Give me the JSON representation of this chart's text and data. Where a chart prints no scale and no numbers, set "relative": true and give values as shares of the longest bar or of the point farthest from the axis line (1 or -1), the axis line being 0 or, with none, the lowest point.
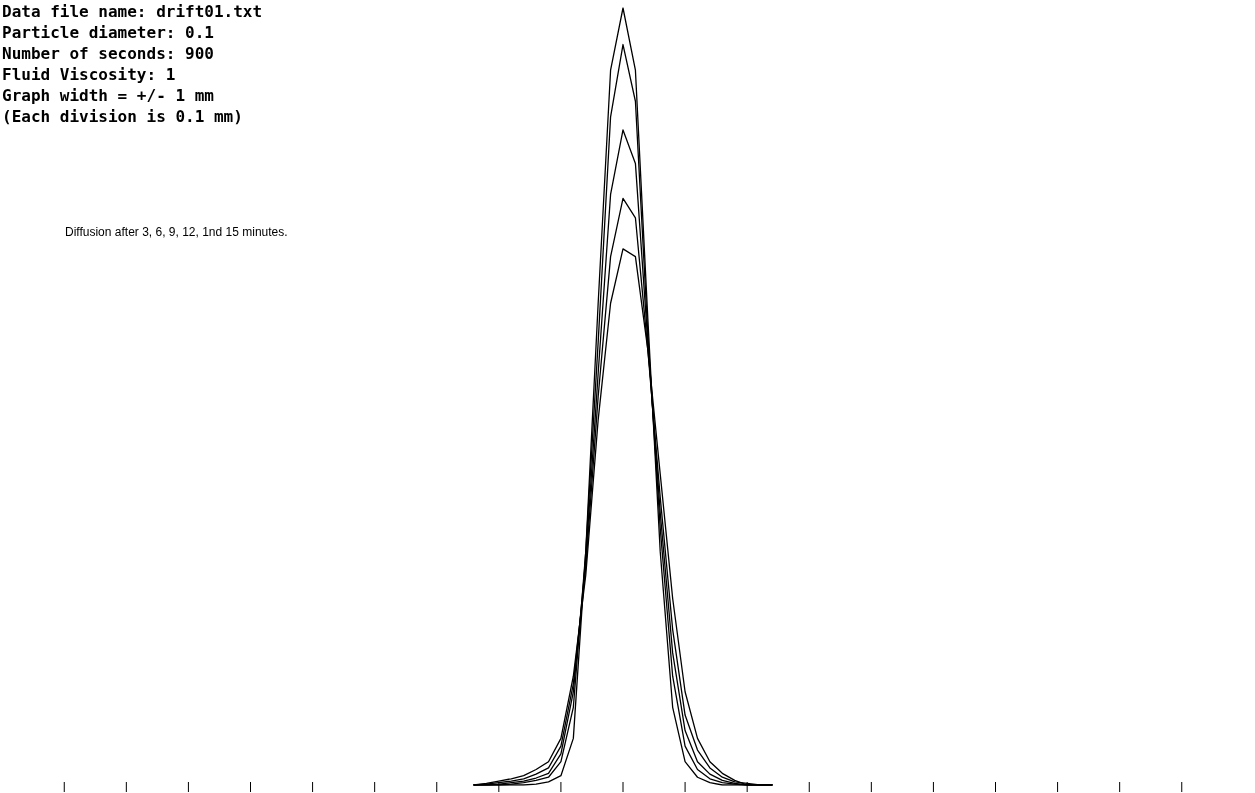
{
  "chart_data": {
    "type": "line",
    "relative": true,
    "grid": false,
    "marker": "none",
    "line_style": "solid",
    "annotations": [
      "Data file name: drift01.txt",
      "Particle diameter: 0.1",
      "Number of seconds: 900",
      "Fluid Viscosity: 1",
      "Graph width = +/- 1 mm",
      "(Each division is 0.1 mm)",
      "Diffusion after 3, 6, 9, 12, 1nd 15 minutes."
    ],
    "categories": [
      null,
      null,
      null,
      null,
      null,
      null,
      null,
      null,
      null,
      null,
      null,
      null,
      null,
      null,
      null,
      null,
      null,
      null,
      null,
      null,
      null,
      null,
      null,
      null,
      null
    ],
    "series": [
      {
        "color": "#000000",
        "values": [
          0,
          0,
          0,
          0,
          0,
          0.001,
          0.004,
          0.012,
          0.06,
          0.3,
          0.62,
          0.92,
          1,
          0.92,
          0.6,
          0.3,
          0.1,
          0.03,
          0.01,
          0.003,
          0,
          0,
          0,
          0,
          0
        ]
      },
      {
        "color": "#000000",
        "values": [
          0,
          0,
          0,
          0.001,
          0.003,
          0.006,
          0.01,
          0.03,
          0.1,
          0.3,
          0.57,
          0.86,
          0.953,
          0.88,
          0.58,
          0.33,
          0.14,
          0.05,
          0.02,
          0.008,
          0.003,
          0.001,
          0,
          0,
          0
        ]
      },
      {
        "color": "#000000",
        "values": [
          0,
          0,
          0.001,
          0.003,
          0.005,
          0.009,
          0.015,
          0.04,
          0.12,
          0.29,
          0.53,
          0.76,
          0.843,
          0.8,
          0.57,
          0.35,
          0.17,
          0.07,
          0.03,
          0.014,
          0.006,
          0.002,
          0,
          0,
          0
        ]
      },
      {
        "color": "#000000",
        "values": [
          0,
          0.001,
          0.003,
          0.005,
          0.008,
          0.014,
          0.022,
          0.05,
          0.13,
          0.28,
          0.5,
          0.68,
          0.755,
          0.73,
          0.56,
          0.37,
          0.2,
          0.09,
          0.045,
          0.022,
          0.01,
          0.004,
          0.002,
          0,
          0
        ]
      },
      {
        "color": "#000000",
        "values": [
          0,
          0.002,
          0.005,
          0.008,
          0.012,
          0.02,
          0.03,
          0.06,
          0.14,
          0.27,
          0.47,
          0.62,
          0.69,
          0.68,
          0.56,
          0.4,
          0.24,
          0.12,
          0.06,
          0.03,
          0.015,
          0.006,
          0,
          0,
          0
        ]
      }
    ]
  }
}
